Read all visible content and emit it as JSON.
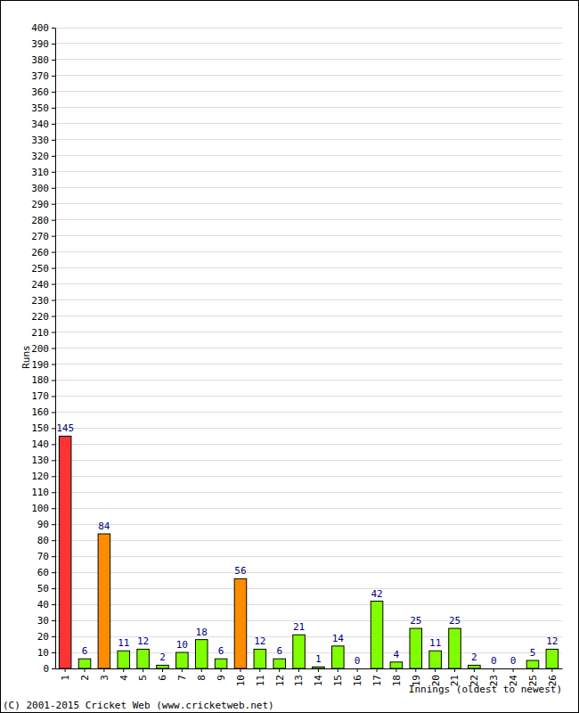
{
  "chart_data": {
    "type": "bar",
    "x_label": "Innings (oldest to newest)",
    "y_label": "Runs",
    "annotations": [
      "(C) 2001-2015 Cricket Web (www.cricketweb.net)"
    ],
    "categories": [
      "1",
      "2",
      "3",
      "4",
      "5",
      "6",
      "7",
      "8",
      "9",
      "10",
      "11",
      "12",
      "13",
      "14",
      "15",
      "16",
      "17",
      "18",
      "19",
      "20",
      "21",
      "22",
      "23",
      "24",
      "25",
      "26"
    ],
    "values": [
      145,
      6,
      84,
      11,
      12,
      2,
      10,
      18,
      6,
      56,
      12,
      6,
      21,
      1,
      14,
      0,
      42,
      4,
      25,
      11,
      25,
      2,
      0,
      0,
      5,
      12
    ],
    "colors": [
      "#ff3333",
      "#80ff00",
      "#ff8c00",
      "#80ff00",
      "#80ff00",
      "#80ff00",
      "#80ff00",
      "#80ff00",
      "#80ff00",
      "#ff8c00",
      "#80ff00",
      "#80ff00",
      "#80ff00",
      "#80ff00",
      "#80ff00",
      "#80ff00",
      "#80ff00",
      "#80ff00",
      "#80ff00",
      "#80ff00",
      "#80ff00",
      "#80ff00",
      "#80ff00",
      "#80ff00",
      "#80ff00",
      "#80ff00"
    ],
    "ylim": [
      0,
      400
    ],
    "yticks": [
      0,
      10,
      20,
      30,
      40,
      50,
      60,
      70,
      80,
      90,
      100,
      110,
      120,
      130,
      140,
      150,
      160,
      170,
      180,
      190,
      200,
      210,
      220,
      230,
      240,
      250,
      260,
      270,
      280,
      290,
      300,
      310,
      320,
      330,
      340,
      350,
      360,
      370,
      380,
      390,
      400
    ],
    "grid": true,
    "data_labels": true
  }
}
